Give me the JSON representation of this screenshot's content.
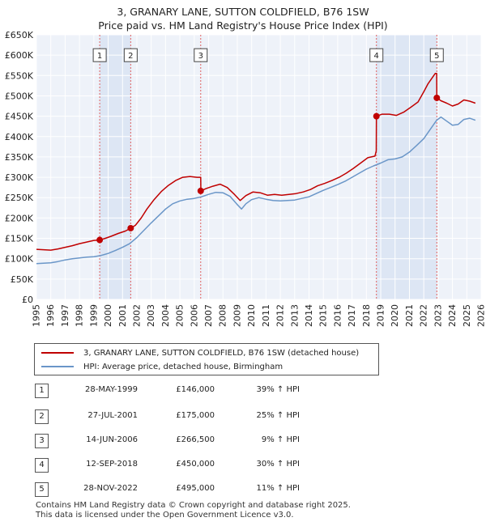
{
  "chart_data": {
    "type": "line",
    "title": "3, GRANARY LANE, SUTTON COLDFIELD, B76 1SW",
    "subtitle": "Price paid vs. HM Land Registry's House Price Index (HPI)",
    "xlim": [
      1995,
      2026
    ],
    "ylim": [
      0,
      650000
    ],
    "y_ticks": [
      0,
      50000,
      100000,
      150000,
      200000,
      250000,
      300000,
      350000,
      400000,
      450000,
      500000,
      550000,
      600000,
      650000
    ],
    "y_tick_labels": [
      "£0",
      "£50K",
      "£100K",
      "£150K",
      "£200K",
      "£250K",
      "£300K",
      "£350K",
      "£400K",
      "£450K",
      "£500K",
      "£550K",
      "£600K",
      "£650K"
    ],
    "x_ticks": [
      1995,
      1996,
      1997,
      1998,
      1999,
      2000,
      2001,
      2002,
      2003,
      2004,
      2005,
      2006,
      2007,
      2008,
      2009,
      2010,
      2011,
      2012,
      2013,
      2014,
      2015,
      2016,
      2017,
      2018,
      2019,
      2020,
      2021,
      2022,
      2023,
      2024,
      2025,
      2026
    ],
    "x_tick_labels": [
      "1995",
      "1996",
      "1997",
      "1998",
      "1999",
      "2000",
      "2001",
      "2002",
      "2003",
      "2004",
      "2005",
      "2006",
      "2007",
      "2008",
      "2009",
      "2010",
      "2011",
      "2012",
      "2013",
      "2014",
      "2015",
      "2016",
      "2017",
      "2018",
      "2019",
      "2020",
      "2021",
      "2022",
      "2023",
      "2024",
      "2025",
      "2026"
    ],
    "grid": true,
    "legend_placement": "bottom",
    "series": [
      {
        "name": "3, GRANARY LANE, SUTTON COLDFIELD, B76 1SW (detached house)",
        "color": "#c00000",
        "points": [
          [
            1995.0,
            123000
          ],
          [
            1995.5,
            122000
          ],
          [
            1996.0,
            121000
          ],
          [
            1996.5,
            124000
          ],
          [
            1997.0,
            128000
          ],
          [
            1997.5,
            132000
          ],
          [
            1998.0,
            137000
          ],
          [
            1998.5,
            141000
          ],
          [
            1999.0,
            145000
          ],
          [
            1999.41,
            146000
          ],
          [
            1999.8,
            150000
          ],
          [
            2000.2,
            155000
          ],
          [
            2000.7,
            162000
          ],
          [
            2001.2,
            168000
          ],
          [
            2001.57,
            175000
          ],
          [
            2001.9,
            182000
          ],
          [
            2002.3,
            200000
          ],
          [
            2002.7,
            222000
          ],
          [
            2003.2,
            245000
          ],
          [
            2003.7,
            265000
          ],
          [
            2004.2,
            280000
          ],
          [
            2004.7,
            292000
          ],
          [
            2005.2,
            300000
          ],
          [
            2005.7,
            302000
          ],
          [
            2006.2,
            300000
          ],
          [
            2006.45,
            300000
          ],
          [
            2006.46,
            266500
          ],
          [
            2006.8,
            272000
          ],
          [
            2007.3,
            278000
          ],
          [
            2007.8,
            283000
          ],
          [
            2008.3,
            275000
          ],
          [
            2008.8,
            258000
          ],
          [
            2009.2,
            243000
          ],
          [
            2009.6,
            255000
          ],
          [
            2010.1,
            264000
          ],
          [
            2010.6,
            262000
          ],
          [
            2011.1,
            256000
          ],
          [
            2011.6,
            258000
          ],
          [
            2012.1,
            256000
          ],
          [
            2012.6,
            258000
          ],
          [
            2013.1,
            260000
          ],
          [
            2013.6,
            264000
          ],
          [
            2014.1,
            270000
          ],
          [
            2014.6,
            279000
          ],
          [
            2015.1,
            285000
          ],
          [
            2015.6,
            292000
          ],
          [
            2016.1,
            300000
          ],
          [
            2016.6,
            310000
          ],
          [
            2017.1,
            322000
          ],
          [
            2017.6,
            335000
          ],
          [
            2018.1,
            348000
          ],
          [
            2018.6,
            352000
          ],
          [
            2018.69,
            365000
          ],
          [
            2018.7,
            450000
          ],
          [
            2019.1,
            455000
          ],
          [
            2019.6,
            455000
          ],
          [
            2020.1,
            452000
          ],
          [
            2020.6,
            460000
          ],
          [
            2021.1,
            472000
          ],
          [
            2021.6,
            485000
          ],
          [
            2022.0,
            510000
          ],
          [
            2022.3,
            530000
          ],
          [
            2022.6,
            545000
          ],
          [
            2022.8,
            555000
          ],
          [
            2022.9,
            555000
          ],
          [
            2022.91,
            495000
          ],
          [
            2023.2,
            488000
          ],
          [
            2023.6,
            482000
          ],
          [
            2024.0,
            475000
          ],
          [
            2024.4,
            480000
          ],
          [
            2024.8,
            490000
          ],
          [
            2025.2,
            487000
          ],
          [
            2025.6,
            482000
          ]
        ]
      },
      {
        "name": "HPI: Average price, detached house, Birmingham",
        "color": "#6a96c8",
        "points": [
          [
            1995.0,
            88000
          ],
          [
            1995.5,
            89000
          ],
          [
            1996.0,
            90000
          ],
          [
            1996.5,
            93000
          ],
          [
            1997.0,
            97000
          ],
          [
            1997.5,
            100000
          ],
          [
            1998.0,
            102000
          ],
          [
            1998.5,
            104000
          ],
          [
            1999.0,
            105000
          ],
          [
            1999.5,
            108000
          ],
          [
            2000.0,
            113000
          ],
          [
            2000.5,
            120000
          ],
          [
            2001.0,
            128000
          ],
          [
            2001.5,
            137000
          ],
          [
            2002.0,
            152000
          ],
          [
            2002.5,
            170000
          ],
          [
            2003.0,
            188000
          ],
          [
            2003.5,
            205000
          ],
          [
            2004.0,
            222000
          ],
          [
            2004.5,
            235000
          ],
          [
            2005.0,
            242000
          ],
          [
            2005.5,
            246000
          ],
          [
            2006.0,
            248000
          ],
          [
            2006.5,
            252000
          ],
          [
            2007.0,
            258000
          ],
          [
            2007.5,
            263000
          ],
          [
            2008.0,
            262000
          ],
          [
            2008.5,
            253000
          ],
          [
            2009.0,
            233000
          ],
          [
            2009.3,
            222000
          ],
          [
            2009.6,
            235000
          ],
          [
            2010.0,
            245000
          ],
          [
            2010.5,
            250000
          ],
          [
            2011.0,
            246000
          ],
          [
            2011.5,
            243000
          ],
          [
            2012.0,
            242000
          ],
          [
            2012.5,
            243000
          ],
          [
            2013.0,
            244000
          ],
          [
            2013.5,
            248000
          ],
          [
            2014.0,
            252000
          ],
          [
            2014.5,
            260000
          ],
          [
            2015.0,
            268000
          ],
          [
            2015.5,
            275000
          ],
          [
            2016.0,
            282000
          ],
          [
            2016.5,
            290000
          ],
          [
            2017.0,
            300000
          ],
          [
            2017.5,
            310000
          ],
          [
            2018.0,
            320000
          ],
          [
            2018.5,
            328000
          ],
          [
            2019.0,
            335000
          ],
          [
            2019.5,
            343000
          ],
          [
            2020.0,
            345000
          ],
          [
            2020.5,
            350000
          ],
          [
            2021.0,
            362000
          ],
          [
            2021.5,
            378000
          ],
          [
            2022.0,
            395000
          ],
          [
            2022.5,
            420000
          ],
          [
            2022.9,
            440000
          ],
          [
            2023.2,
            448000
          ],
          [
            2023.6,
            438000
          ],
          [
            2024.0,
            428000
          ],
          [
            2024.4,
            430000
          ],
          [
            2024.8,
            442000
          ],
          [
            2025.2,
            445000
          ],
          [
            2025.6,
            440000
          ]
        ]
      }
    ],
    "sales": [
      {
        "label": "1",
        "x": 1999.41,
        "y": 146000
      },
      {
        "label": "2",
        "x": 2001.57,
        "y": 175000
      },
      {
        "label": "3",
        "x": 2006.45,
        "y": 266500
      },
      {
        "label": "4",
        "x": 2018.7,
        "y": 450000
      },
      {
        "label": "5",
        "x": 2022.91,
        "y": 495000
      }
    ],
    "shaded_ranges": [
      [
        1999.41,
        2001.57
      ],
      [
        2018.7,
        2022.91
      ]
    ],
    "marker_label_y": 600000
  },
  "legend": {
    "property": "3, GRANARY LANE, SUTTON COLDFIELD, B76 1SW (detached house)",
    "hpi": "HPI: Average price, detached house, Birmingham"
  },
  "sales_table": [
    {
      "num": "1",
      "date": "28-MAY-1999",
      "price": "£146,000",
      "hpi": "39% ↑ HPI"
    },
    {
      "num": "2",
      "date": "27-JUL-2001",
      "price": "£175,000",
      "hpi": "25% ↑ HPI"
    },
    {
      "num": "3",
      "date": "14-JUN-2006",
      "price": "£266,500",
      "hpi": "9% ↑ HPI"
    },
    {
      "num": "4",
      "date": "12-SEP-2018",
      "price": "£450,000",
      "hpi": "30% ↑ HPI"
    },
    {
      "num": "5",
      "date": "28-NOV-2022",
      "price": "£495,000",
      "hpi": "11% ↑ HPI"
    }
  ],
  "footer": {
    "line1": "Contains HM Land Registry data © Crown copyright and database right 2025.",
    "line2": "This data is licensed under the Open Government Licence v3.0."
  },
  "colors": {
    "property_line": "#c00000",
    "hpi_line": "#6a96c8",
    "plot_bg": "#eef2f9",
    "shade": "#dde6f4",
    "grid": "#ffffff"
  }
}
